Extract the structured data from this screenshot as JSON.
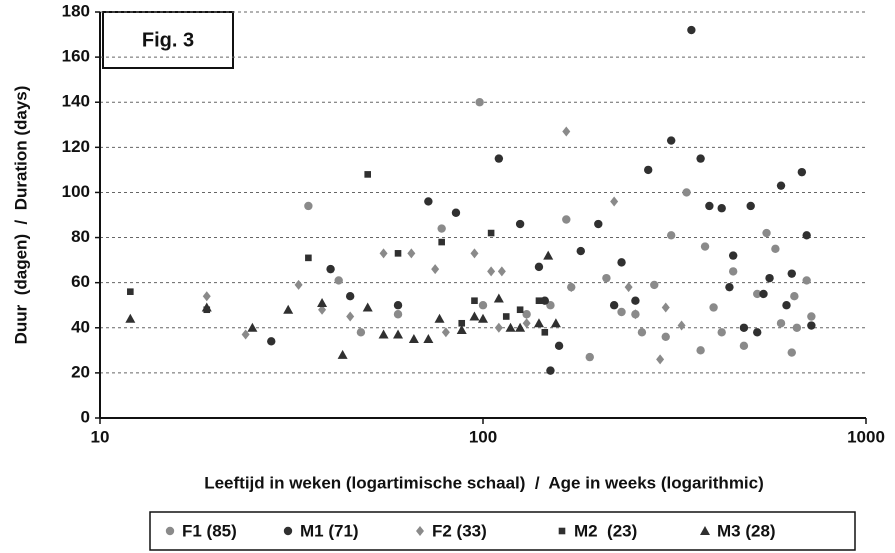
{
  "chart_data": {
    "type": "scatter",
    "title": "Fig. 3",
    "x_label": "Leeftijd in weken (logartimische schaal)  /  Age in weeks (logarithmic)",
    "y_label": "Duur  (dagen)  /  Duration (days)",
    "xlog": true,
    "xlim": [
      10,
      1000
    ],
    "xticks": [
      10,
      100,
      1000
    ],
    "ylim": [
      0,
      180
    ],
    "yticks": [
      0,
      20,
      40,
      60,
      80,
      100,
      120,
      140,
      160,
      180
    ],
    "grid": true,
    "legend": "bottom",
    "series": [
      {
        "name": "F1 (85)",
        "color": "#8a8a8a",
        "marker": "circle",
        "x": [
          35,
          42,
          48,
          60,
          78,
          98,
          100,
          130,
          150,
          165,
          170,
          190,
          210,
          230,
          250,
          260,
          280,
          300,
          310,
          340,
          370,
          380,
          400,
          420,
          450,
          480,
          520,
          550,
          580,
          600,
          640,
          650,
          660,
          700,
          720
        ],
        "values": [
          94,
          61,
          38,
          46,
          84,
          140,
          50,
          46,
          50,
          88,
          58,
          27,
          62,
          47,
          46,
          38,
          59,
          36,
          81,
          100,
          30,
          76,
          49,
          38,
          65,
          32,
          55,
          82,
          75,
          42,
          29,
          54,
          40,
          61,
          45
        ]
      },
      {
        "name": "M1 (71)",
        "color": "#303030",
        "marker": "circle",
        "x": [
          28,
          40,
          45,
          60,
          72,
          85,
          110,
          125,
          140,
          145,
          150,
          158,
          180,
          200,
          220,
          230,
          250,
          270,
          310,
          350,
          370,
          390,
          420,
          440,
          450,
          480,
          500,
          520,
          540,
          560,
          600,
          620,
          640,
          680,
          700,
          720
        ],
        "values": [
          34,
          66,
          54,
          50,
          96,
          91,
          115,
          86,
          67,
          52,
          21,
          32,
          74,
          86,
          50,
          69,
          52,
          110,
          123,
          172,
          115,
          94,
          93,
          58,
          72,
          40,
          94,
          38,
          55,
          62,
          103,
          50,
          64,
          109,
          81,
          41
        ]
      },
      {
        "name": "F2 (33)",
        "color": "#8a8a8a",
        "marker": "diamond",
        "x": [
          19,
          24,
          33,
          38,
          45,
          55,
          65,
          75,
          80,
          95,
          105,
          110,
          112,
          130,
          165,
          170,
          220,
          240,
          250,
          290,
          300,
          330
        ],
        "values": [
          54,
          37,
          59,
          48,
          45,
          73,
          73,
          66,
          38,
          73,
          65,
          40,
          65,
          42,
          127,
          58,
          96,
          58,
          46,
          26,
          49,
          41
        ]
      },
      {
        "name": "M2  (23)",
        "color": "#303030",
        "marker": "square",
        "x": [
          12,
          19,
          35,
          50,
          60,
          78,
          88,
          95,
          105,
          115,
          125,
          140,
          145
        ],
        "values": [
          56,
          48,
          71,
          108,
          73,
          78,
          42,
          52,
          82,
          45,
          48,
          52,
          38
        ]
      },
      {
        "name": "M3 (28)",
        "color": "#303030",
        "marker": "triangle",
        "x": [
          12,
          19,
          25,
          31,
          38,
          43,
          50,
          55,
          60,
          66,
          72,
          77,
          88,
          95,
          100,
          110,
          118,
          125,
          140,
          148,
          155
        ],
        "values": [
          44,
          49,
          40,
          48,
          51,
          28,
          49,
          37,
          37,
          35,
          35,
          44,
          39,
          45,
          44,
          53,
          40,
          40,
          42,
          72,
          42
        ]
      }
    ]
  }
}
